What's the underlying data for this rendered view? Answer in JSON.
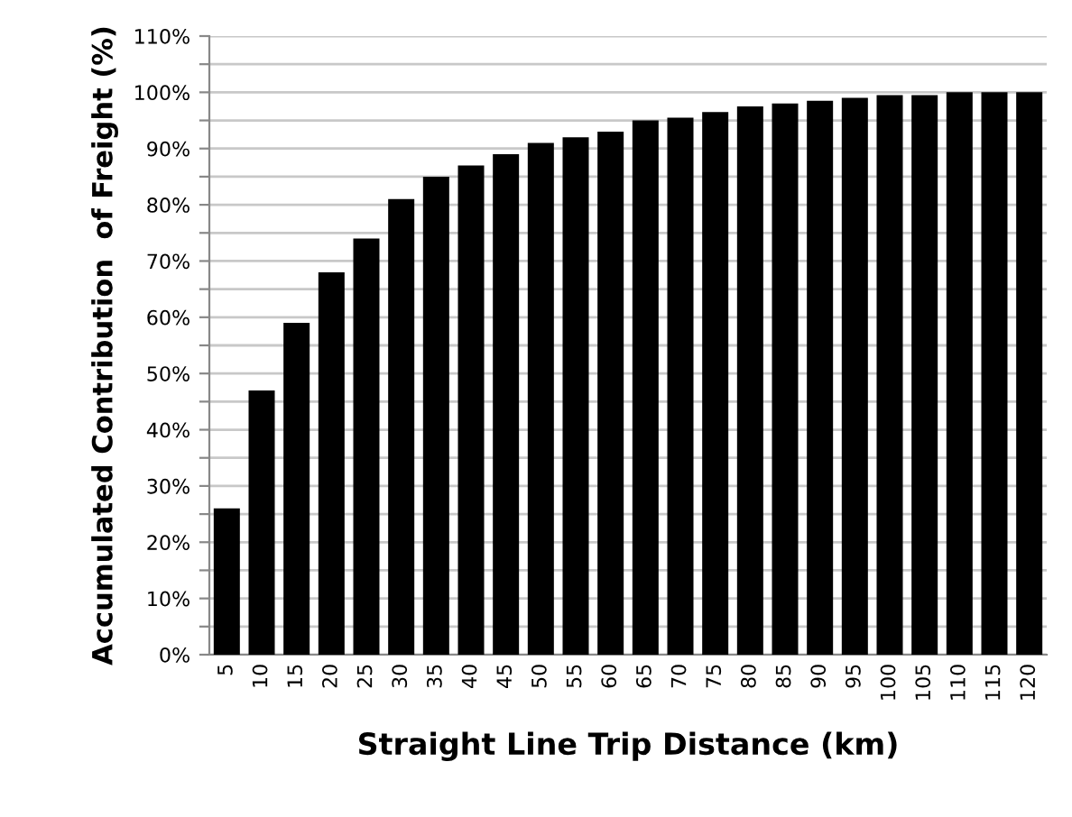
{
  "chart_data": {
    "type": "bar",
    "xlabel": "Straight Line Trip Distance (km)",
    "ylabel": "Accumulated Contribution  of Freight (%)",
    "categories": [
      "5",
      "10",
      "15",
      "20",
      "25",
      "30",
      "35",
      "40",
      "45",
      "50",
      "55",
      "60",
      "65",
      "70",
      "75",
      "80",
      "85",
      "90",
      "95",
      "100",
      "105",
      "110",
      "115",
      "120"
    ],
    "values": [
      26,
      47,
      59,
      68,
      74,
      81,
      85,
      87,
      89,
      91,
      92,
      93,
      95,
      95.5,
      96.5,
      97.5,
      98,
      98.5,
      99,
      99.5,
      99.5,
      100,
      100,
      100
    ],
    "color": "#000000",
    "ylim": [
      0,
      110
    ],
    "yticks": [
      {
        "value": 0,
        "label": "0%"
      },
      {
        "value": 5,
        "label": null
      },
      {
        "value": 10,
        "label": "10%"
      },
      {
        "value": 15,
        "label": null
      },
      {
        "value": 20,
        "label": "20%"
      },
      {
        "value": 25,
        "label": null
      },
      {
        "value": 30,
        "label": "30%"
      },
      {
        "value": 35,
        "label": null
      },
      {
        "value": 40,
        "label": "40%"
      },
      {
        "value": 45,
        "label": null
      },
      {
        "value": 50,
        "label": "50%"
      },
      {
        "value": 55,
        "label": null
      },
      {
        "value": 60,
        "label": "60%"
      },
      {
        "value": 65,
        "label": null
      },
      {
        "value": 70,
        "label": "70%"
      },
      {
        "value": 75,
        "label": null
      },
      {
        "value": 80,
        "label": "80%"
      },
      {
        "value": 85,
        "label": null
      },
      {
        "value": 90,
        "label": "90%"
      },
      {
        "value": 95,
        "label": null
      },
      {
        "value": 100,
        "label": "100%"
      },
      {
        "value": 105,
        "label": null
      },
      {
        "value": 110,
        "label": "110%"
      }
    ],
    "grid": "y"
  }
}
